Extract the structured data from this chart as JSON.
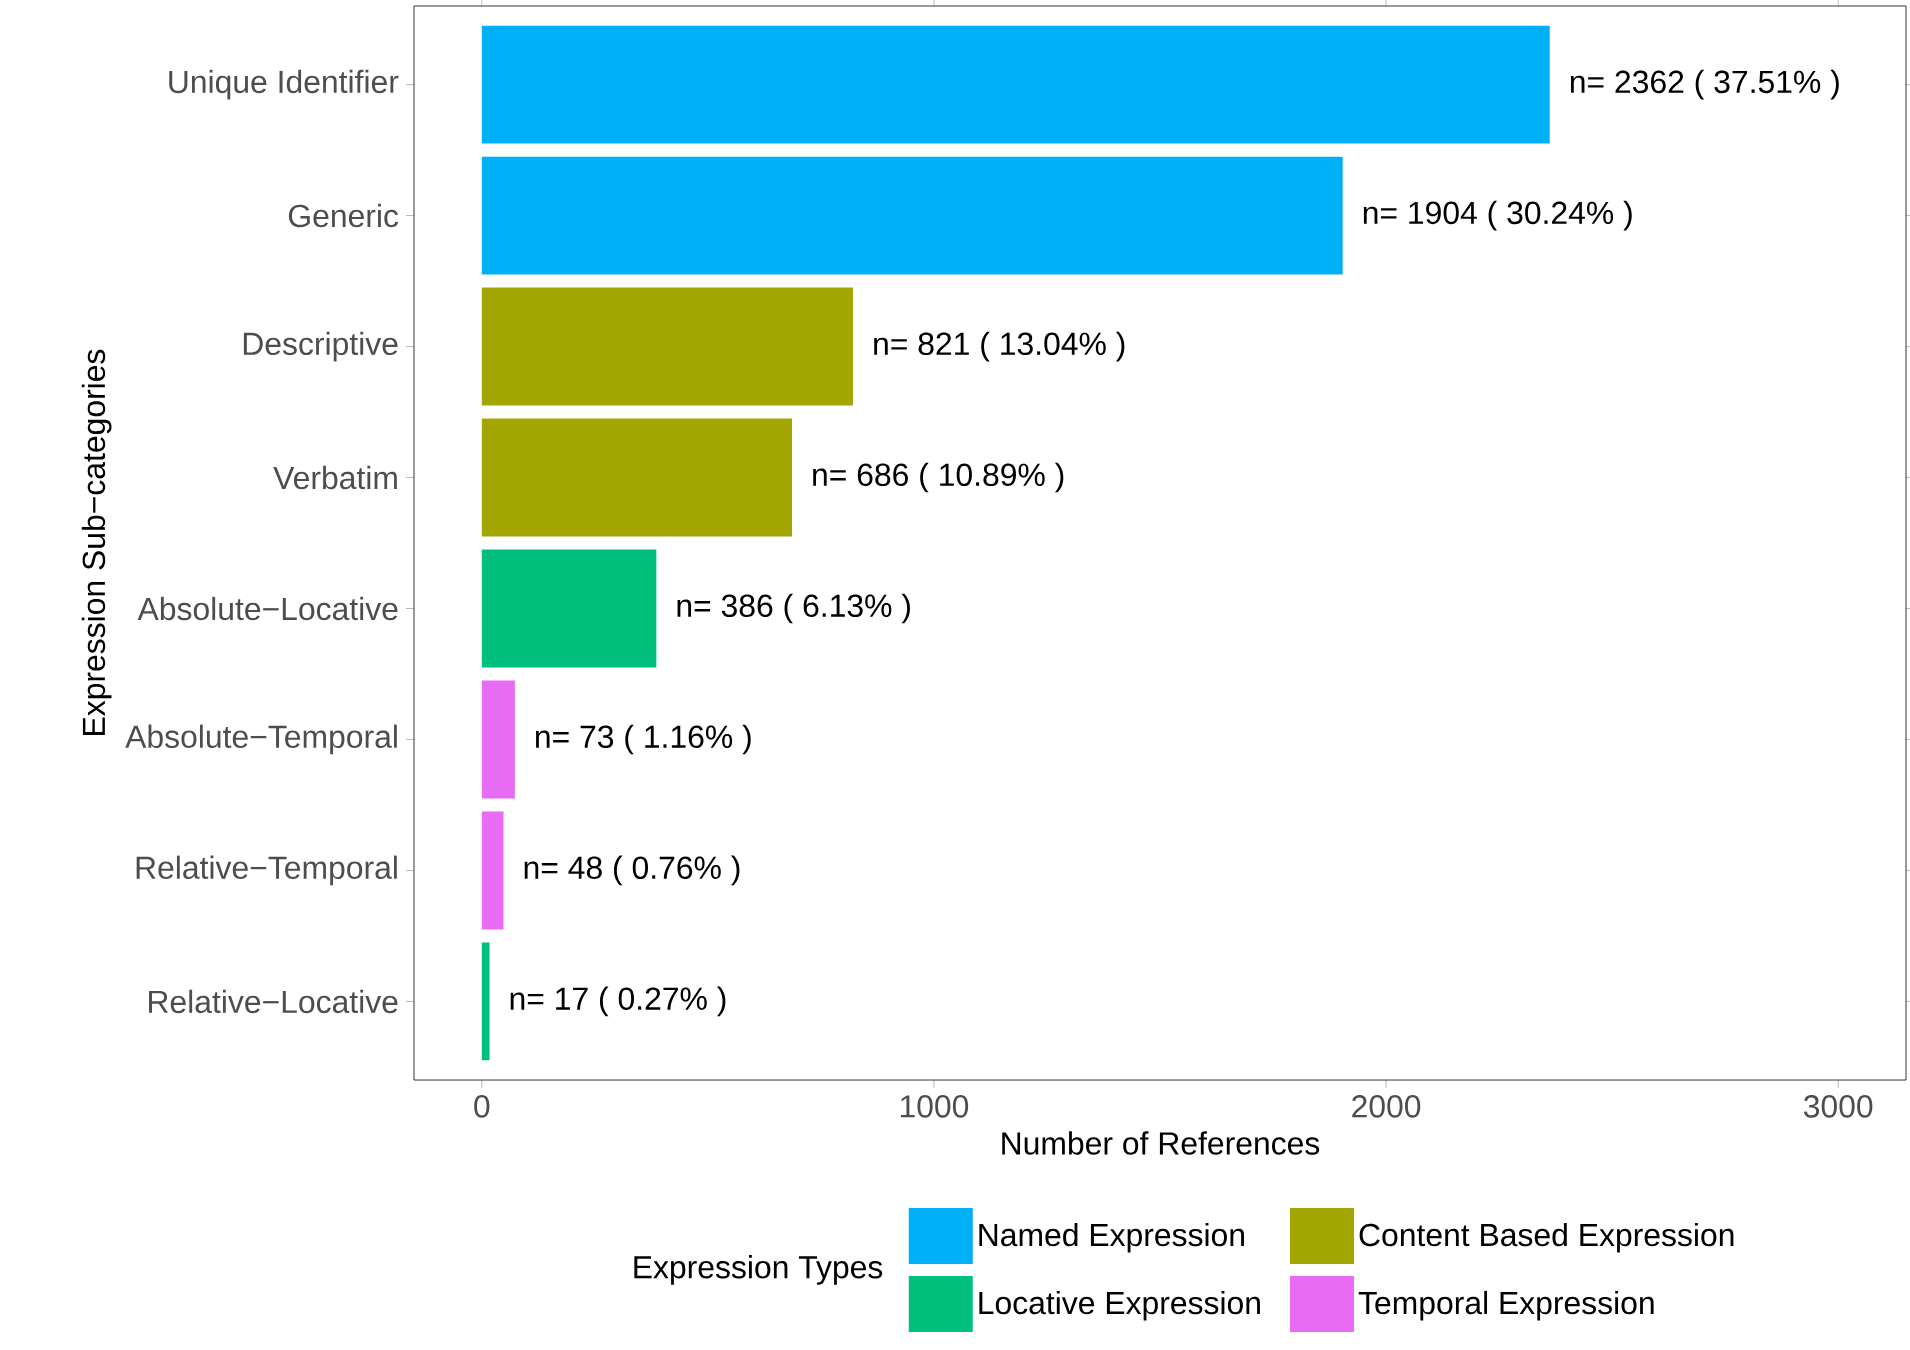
{
  "chart_data": {
    "type": "bar",
    "orientation": "horizontal",
    "xlabel": "Number of References",
    "ylabel": "Expression Sub−categories",
    "legend_title": "Expression Types",
    "legend": "bottom",
    "grid": false,
    "categories": [
      "Unique Identifier",
      "Generic",
      "Descriptive",
      "Verbatim",
      "Absolute−Locative",
      "Absolute−Temporal",
      "Relative−Temporal",
      "Relative−Locative"
    ],
    "xlim": [
      -150,
      3150
    ],
    "xticks": [
      0,
      1000,
      2000,
      3000
    ],
    "series": [
      {
        "name": "Named Expression",
        "color": "#00b0f6",
        "values": [
          2362,
          1904,
          null,
          null,
          null,
          null,
          null,
          null
        ],
        "value_labels": [
          "n= 2362 ( 37.51% )",
          "n= 1904 ( 30.24% )",
          null,
          null,
          null,
          null,
          null,
          null
        ]
      },
      {
        "name": "Content Based Expression",
        "color": "#a3a500",
        "values": [
          null,
          null,
          821,
          686,
          null,
          null,
          null,
          null
        ],
        "value_labels": [
          null,
          null,
          "n= 821 ( 13.04% )",
          "n= 686 ( 10.89% )",
          null,
          null,
          null,
          null
        ]
      },
      {
        "name": "Locative Expression",
        "color": "#00bf7d",
        "values": [
          null,
          null,
          null,
          null,
          386,
          null,
          null,
          17
        ],
        "value_labels": [
          null,
          null,
          null,
          null,
          "n= 386 ( 6.13% )",
          null,
          null,
          "n= 17 ( 0.27% )"
        ]
      },
      {
        "name": "Temporal Expression",
        "color": "#e76bf3",
        "values": [
          null,
          null,
          null,
          null,
          null,
          73,
          48,
          null
        ],
        "value_labels": [
          null,
          null,
          null,
          null,
          null,
          "n= 73 ( 1.16% )",
          "n= 48 ( 0.76% )",
          null
        ]
      }
    ]
  }
}
